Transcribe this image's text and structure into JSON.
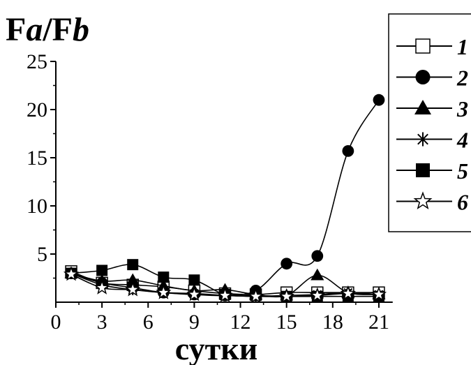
{
  "chart_data": {
    "type": "line",
    "title": "",
    "ylabel_parts": [
      {
        "text": "F",
        "italic": false
      },
      {
        "text": "a",
        "italic": true
      },
      {
        "text": "/F",
        "italic": false
      },
      {
        "text": "b",
        "italic": true
      }
    ],
    "xlabel": "сутки",
    "xlim": [
      0,
      22
    ],
    "ylim": [
      0,
      25
    ],
    "xticks": [
      0,
      3,
      6,
      9,
      12,
      15,
      18,
      21
    ],
    "yticks": [
      5,
      10,
      15,
      20,
      25
    ],
    "legend_position": "right",
    "series": [
      {
        "name": "1",
        "marker": "open-square",
        "x": [
          1,
          3,
          5,
          7,
          9,
          11,
          13,
          15,
          17,
          19,
          21
        ],
        "y": [
          3.2,
          2.0,
          1.8,
          1.6,
          1.2,
          0.9,
          0.8,
          1.0,
          1.0,
          1.0,
          1.0
        ]
      },
      {
        "name": "2",
        "marker": "filled-circle",
        "x": [
          1,
          3,
          5,
          7,
          9,
          11,
          13,
          15,
          17,
          19,
          21
        ],
        "y": [
          3.0,
          2.0,
          1.5,
          1.0,
          0.8,
          0.7,
          1.2,
          4.0,
          4.8,
          15.7,
          21.0
        ]
      },
      {
        "name": "3",
        "marker": "filled-triangle",
        "x": [
          1,
          3,
          5,
          7,
          9,
          11,
          13,
          15,
          17,
          19,
          21
        ],
        "y": [
          3.0,
          2.2,
          2.3,
          1.7,
          1.2,
          1.3,
          0.8,
          0.7,
          2.8,
          1.0,
          0.8
        ]
      },
      {
        "name": "4",
        "marker": "asterisk",
        "x": [
          1,
          3,
          5,
          7,
          9,
          11,
          13,
          15,
          17,
          19,
          21
        ],
        "y": [
          3.0,
          1.8,
          1.3,
          1.0,
          0.9,
          0.7,
          0.6,
          0.7,
          0.8,
          1.0,
          0.8
        ]
      },
      {
        "name": "5",
        "marker": "filled-square",
        "x": [
          1,
          3,
          5,
          7,
          9,
          11,
          13,
          15,
          17,
          19,
          21
        ],
        "y": [
          3.0,
          3.3,
          3.9,
          2.6,
          2.3,
          0.8,
          0.7,
          0.6,
          0.6,
          0.6,
          0.6
        ]
      },
      {
        "name": "6",
        "marker": "open-star",
        "x": [
          1,
          3,
          5,
          7,
          9,
          11,
          13,
          15,
          17,
          19,
          21
        ],
        "y": [
          2.9,
          1.5,
          1.3,
          1.0,
          0.8,
          0.7,
          0.6,
          0.6,
          0.7,
          0.9,
          0.8
        ]
      }
    ]
  }
}
